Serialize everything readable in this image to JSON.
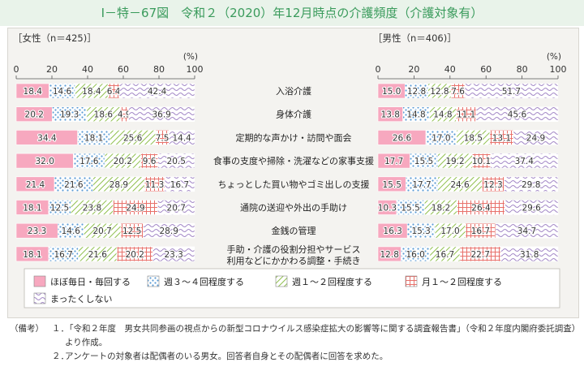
{
  "title": "Ⅰ－特－67図　令和２（2020）年12月時点の介護頻度（介護対象有）",
  "chart_data": {
    "type": "bar",
    "orientation": "horizontal-stacked",
    "unit": "(%)",
    "xlim": [
      0,
      100
    ],
    "xticks": [
      "0",
      "20",
      "40",
      "60",
      "80",
      "100"
    ],
    "categories": [
      [
        "入浴介護"
      ],
      [
        "身体介護"
      ],
      [
        "定期的な声かけ・訪問や面会"
      ],
      [
        "食事の支度や掃除・洗濯などの家事支援"
      ],
      [
        "ちょっとした買い物やゴミ出しの支援"
      ],
      [
        "通院の送迎や外出の手助け"
      ],
      [
        "金銭の管理"
      ],
      [
        "手助・介護の役割分担やサービス",
        "利用などにかかわる調整・手続き"
      ]
    ],
    "legend": [
      {
        "name": "ほぼ毎日・毎回する",
        "pattern": "solid-pink"
      },
      {
        "name": "週３～４回程度する",
        "pattern": "dots-blue"
      },
      {
        "name": "週１～２回程度する",
        "pattern": "diag-green"
      },
      {
        "name": "月１～２回程度する",
        "pattern": "grid-red"
      },
      {
        "name": "まったくしない",
        "pattern": "wave-purple"
      }
    ],
    "panels": [
      {
        "label": "［女性（n＝425)］",
        "rows": [
          [
            18.4,
            14.6,
            18.4,
            6.4,
            42.4
          ],
          [
            20.2,
            19.3,
            18.6,
            4.9,
            36.9
          ],
          [
            34.4,
            18.1,
            25.6,
            7.5,
            14.4
          ],
          [
            32.0,
            17.6,
            20.2,
            9.6,
            20.5
          ],
          [
            21.4,
            21.6,
            28.9,
            11.3,
            16.7
          ],
          [
            18.1,
            12.5,
            23.8,
            24.9,
            20.7
          ],
          [
            23.3,
            14.6,
            20.7,
            12.5,
            28.9
          ],
          [
            18.1,
            16.7,
            21.6,
            20.2,
            23.3
          ]
        ]
      },
      {
        "label": "［男性（n＝406)］",
        "rows": [
          [
            15.0,
            12.8,
            12.8,
            7.6,
            51.7
          ],
          [
            13.8,
            14.8,
            14.8,
            11.1,
            45.6
          ],
          [
            26.6,
            17.0,
            18.5,
            13.1,
            24.9
          ],
          [
            17.7,
            15.5,
            19.2,
            10.1,
            37.4
          ],
          [
            15.5,
            17.7,
            24.6,
            12.3,
            29.8
          ],
          [
            10.3,
            15.5,
            18.2,
            26.4,
            29.6
          ],
          [
            16.3,
            15.3,
            17.0,
            16.7,
            34.7
          ],
          [
            12.8,
            16.0,
            16.7,
            22.7,
            31.8
          ]
        ]
      }
    ]
  },
  "notes": {
    "head": "（備考）",
    "items": [
      {
        "num": "１．",
        "text": "「令和２年度　男女共同参画の視点からの新型コロナウイルス感染症拡大の影響等に関する調査報告書」（令和２年度内閣府委託調査）より作成。"
      },
      {
        "num": "２．",
        "text": "アンケートの対象者は配偶者のいる男女。回答者自身とその配偶者に回答を求めた。"
      }
    ]
  }
}
